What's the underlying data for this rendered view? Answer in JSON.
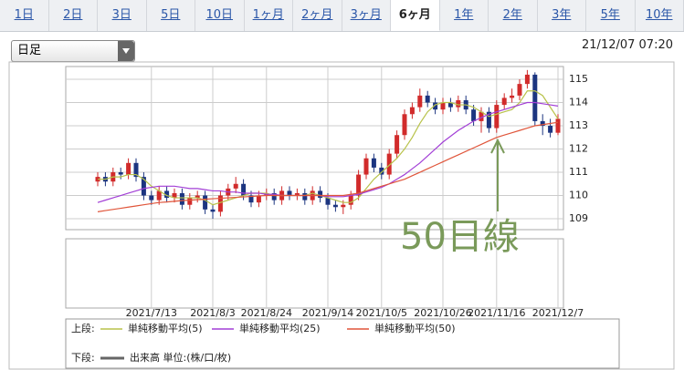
{
  "tabs": [
    "1日",
    "2日",
    "3日",
    "5日",
    "10日",
    "1ヶ月",
    "2ヶ月",
    "3ヶ月",
    "6ヶ月",
    "1年",
    "2年",
    "3年",
    "5年",
    "10年"
  ],
  "active_tab": 8,
  "dropdown": "日足",
  "timestamp": "21/12/07 07:20",
  "chart_data": {
    "type": "candlestick",
    "categories": [
      null,
      null,
      null,
      null,
      null,
      null,
      null,
      "2021/7/13",
      null,
      null,
      null,
      null,
      null,
      null,
      null,
      "2021/8/3",
      null,
      null,
      null,
      null,
      null,
      null,
      "2021/8/24",
      null,
      null,
      null,
      null,
      null,
      null,
      null,
      "2021/9/14",
      null,
      null,
      null,
      null,
      null,
      null,
      "2021/10/5",
      null,
      null,
      null,
      null,
      null,
      null,
      null,
      "2021/10/26",
      null,
      null,
      null,
      null,
      null,
      null,
      "2021/11/16",
      null,
      null,
      null,
      null,
      null,
      null,
      null,
      "2021/12/7"
    ],
    "open": [
      110.6,
      110.8,
      110.6,
      111.0,
      110.9,
      111.4,
      110.8,
      110.0,
      109.8,
      110.2,
      109.9,
      110.1,
      109.6,
      109.9,
      110.0,
      109.4,
      109.3,
      110.0,
      110.3,
      110.5,
      110.0,
      109.7,
      110.0,
      110.1,
      109.8,
      110.2,
      110.0,
      110.1,
      109.8,
      110.2,
      109.9,
      109.6,
      109.5,
      109.6,
      110.0,
      110.9,
      111.6,
      111.2,
      110.9,
      111.8,
      112.6,
      113.5,
      113.8,
      114.3,
      114.0,
      113.7,
      114.0,
      113.8,
      114.1,
      113.7,
      113.2,
      113.6,
      112.9,
      113.9,
      114.2,
      114.3,
      114.8,
      115.2,
      113.2,
      113.0,
      112.7
    ],
    "high": [
      111.0,
      111.0,
      111.2,
      111.2,
      111.6,
      111.6,
      111.0,
      110.2,
      110.4,
      110.4,
      110.3,
      110.3,
      110.1,
      110.2,
      110.2,
      109.6,
      110.2,
      110.5,
      110.8,
      110.7,
      110.2,
      110.2,
      110.3,
      110.3,
      110.4,
      110.4,
      110.3,
      110.3,
      110.4,
      110.4,
      110.1,
      109.8,
      109.8,
      110.2,
      111.1,
      111.8,
      111.8,
      111.4,
      112.0,
      112.8,
      113.7,
      114.0,
      114.6,
      114.5,
      114.2,
      114.2,
      114.2,
      114.3,
      114.3,
      113.9,
      113.8,
      113.8,
      114.1,
      114.4,
      114.6,
      115.0,
      115.4,
      115.3,
      113.5,
      113.3,
      113.5
    ],
    "low": [
      110.4,
      110.4,
      110.4,
      110.7,
      110.7,
      110.6,
      109.8,
      109.6,
      109.6,
      109.7,
      109.7,
      109.4,
      109.4,
      109.7,
      109.2,
      109.0,
      109.1,
      109.8,
      110.1,
      109.8,
      109.5,
      109.5,
      109.8,
      109.6,
      109.6,
      109.8,
      109.8,
      109.6,
      109.6,
      109.7,
      109.4,
      109.3,
      109.2,
      109.4,
      109.8,
      110.7,
      111.0,
      110.7,
      110.7,
      111.6,
      112.4,
      113.3,
      113.6,
      113.8,
      113.5,
      113.5,
      113.6,
      113.6,
      113.5,
      113.0,
      112.7,
      112.7,
      112.7,
      113.7,
      114.0,
      114.1,
      114.6,
      113.0,
      112.6,
      112.5,
      112.6
    ],
    "close": [
      110.8,
      110.6,
      111.0,
      110.9,
      111.4,
      110.8,
      110.0,
      109.8,
      110.2,
      109.9,
      110.1,
      109.6,
      109.9,
      110.0,
      109.4,
      109.3,
      110.0,
      110.3,
      110.5,
      110.0,
      109.7,
      110.0,
      110.1,
      109.8,
      110.2,
      110.0,
      110.1,
      109.8,
      110.2,
      109.9,
      109.6,
      109.5,
      109.6,
      110.0,
      110.9,
      111.6,
      111.2,
      110.9,
      111.8,
      112.6,
      113.5,
      113.8,
      114.3,
      114.0,
      113.7,
      114.0,
      113.8,
      114.1,
      113.7,
      113.2,
      113.6,
      112.9,
      113.9,
      114.2,
      114.3,
      114.8,
      115.2,
      113.2,
      113.0,
      112.7,
      113.3
    ],
    "up_color": "#d12b2b",
    "down_color": "#1c3580",
    "series": [
      {
        "name": "単純移動平均(5)",
        "color": "#b8c24a",
        "values": [
          110.7,
          110.7,
          110.8,
          110.8,
          110.9,
          110.9,
          110.7,
          110.4,
          110.2,
          110.0,
          109.9,
          109.9,
          109.9,
          109.9,
          109.8,
          109.6,
          109.7,
          109.8,
          109.9,
          110.0,
          110.1,
          110.1,
          110.1,
          110.0,
          110.0,
          110.0,
          110.0,
          110.0,
          110.1,
          110.0,
          109.9,
          109.8,
          109.7,
          109.7,
          109.9,
          110.3,
          110.7,
          111.0,
          111.3,
          111.6,
          112.0,
          112.5,
          113.1,
          113.6,
          113.9,
          114.0,
          114.0,
          113.9,
          113.9,
          113.8,
          113.6,
          113.4,
          113.5,
          113.6,
          113.7,
          114.0,
          114.5,
          114.5,
          114.3,
          113.8,
          113.3
        ]
      },
      {
        "name": "単純移動平均(25)",
        "color": "#a23fd6",
        "values": [
          109.7,
          109.8,
          109.9,
          110.0,
          110.1,
          110.2,
          110.3,
          110.35,
          110.4,
          110.4,
          110.4,
          110.35,
          110.3,
          110.3,
          110.25,
          110.2,
          110.2,
          110.15,
          110.15,
          110.1,
          110.1,
          110.1,
          110.05,
          110.05,
          110.0,
          110.0,
          110.0,
          110.0,
          110.0,
          110.0,
          109.95,
          109.95,
          109.95,
          110.0,
          110.05,
          110.15,
          110.25,
          110.35,
          110.5,
          110.7,
          110.9,
          111.15,
          111.4,
          111.7,
          112.0,
          112.3,
          112.55,
          112.8,
          113.0,
          113.2,
          113.35,
          113.5,
          113.6,
          113.7,
          113.8,
          113.9,
          114.0,
          114.0,
          113.95,
          113.9,
          113.85
        ]
      },
      {
        "name": "単純移動平均(50)",
        "color": "#e0553a",
        "values": [
          109.3,
          109.35,
          109.4,
          109.45,
          109.5,
          109.55,
          109.6,
          109.65,
          109.7,
          109.72,
          109.75,
          109.78,
          109.8,
          109.82,
          109.84,
          109.86,
          109.88,
          109.9,
          109.92,
          109.94,
          109.96,
          109.98,
          110.0,
          110.0,
          110.0,
          110.0,
          110.0,
          110.0,
          110.0,
          110.0,
          110.0,
          110.0,
          110.0,
          110.05,
          110.1,
          110.2,
          110.3,
          110.4,
          110.5,
          110.6,
          110.7,
          110.85,
          111.0,
          111.15,
          111.3,
          111.45,
          111.6,
          111.75,
          111.9,
          112.05,
          112.2,
          112.35,
          112.5,
          112.6,
          112.7,
          112.8,
          112.9,
          113.0,
          113.05,
          113.1,
          113.15
        ]
      }
    ],
    "ylim": [
      108.53,
      115.55
    ],
    "yticks": [
      109,
      110,
      111,
      112,
      113,
      114,
      115
    ],
    "grid": true,
    "legend_upper": "上段:",
    "legend_lower": "下段:",
    "volume_label": "出来高 単位:(株/口/枚)",
    "volume_color": "#666666",
    "annotation": "50日線",
    "annotation_color": "#7a9a5a"
  }
}
